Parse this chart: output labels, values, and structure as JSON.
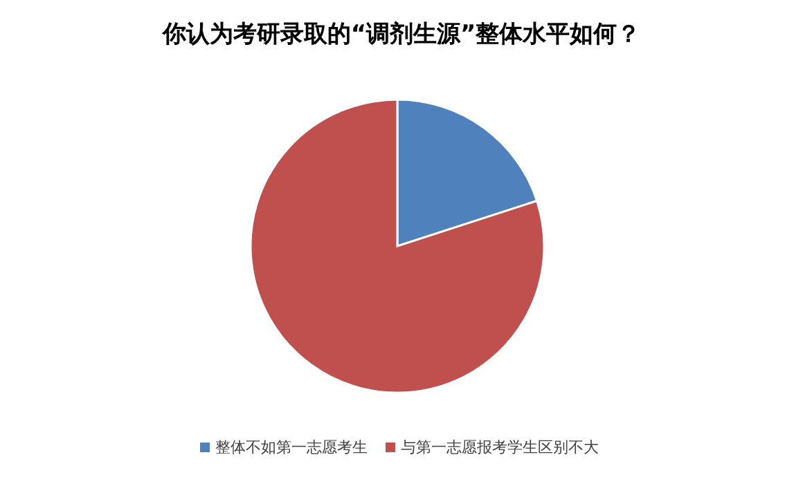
{
  "chart_data": {
    "type": "pie",
    "title": "你认为考研录取的“调剂生源”整体水平如何？",
    "categories": [
      "整体不如第一志愿考生",
      "与第一志愿报考学生区别不大"
    ],
    "values": [
      20,
      80
    ],
    "colors": [
      "#4f81bd",
      "#c0504d"
    ],
    "legend": "bottom"
  }
}
